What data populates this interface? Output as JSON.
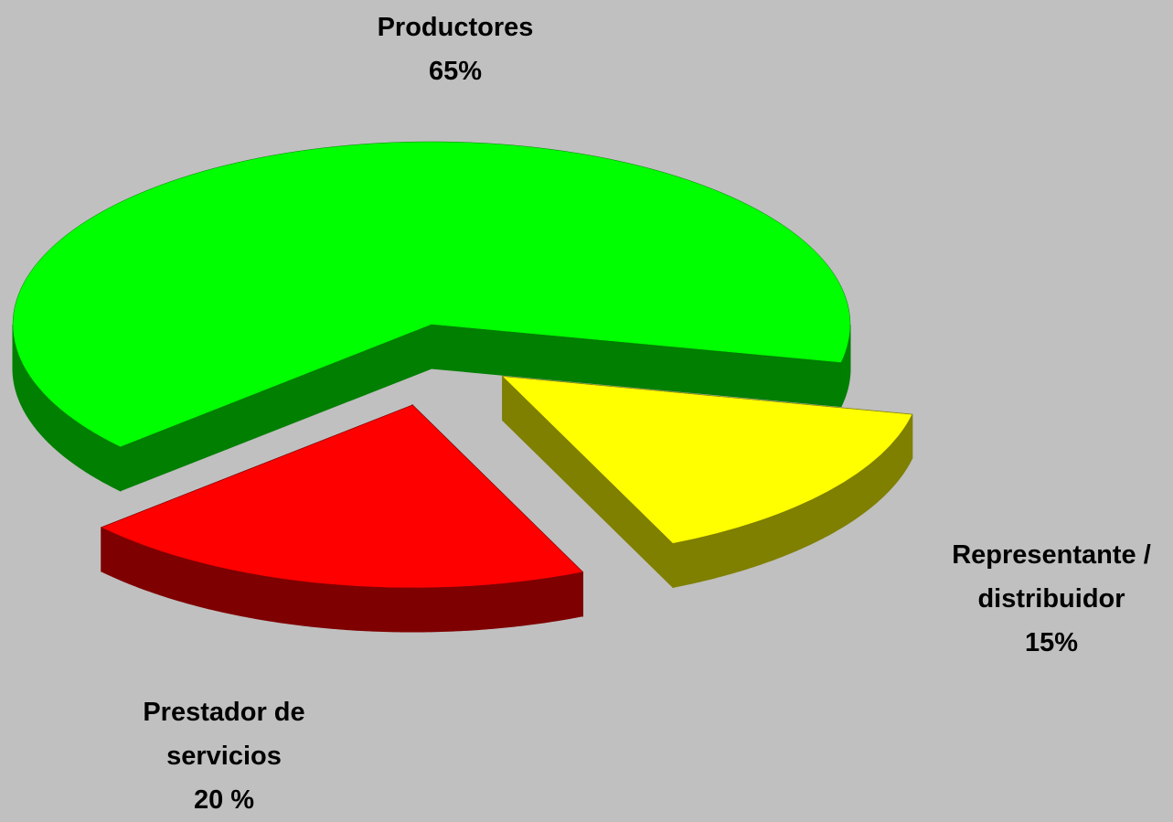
{
  "chart_data": {
    "type": "pie",
    "categories": [
      "Productores",
      "Representante / distribuidor",
      "Prestador de servicios"
    ],
    "values": [
      65,
      15,
      20
    ],
    "value_labels": [
      "65%",
      "15%",
      "20 %"
    ],
    "colors": [
      "#00ff00",
      "#ffff00",
      "#ff0000"
    ]
  }
}
